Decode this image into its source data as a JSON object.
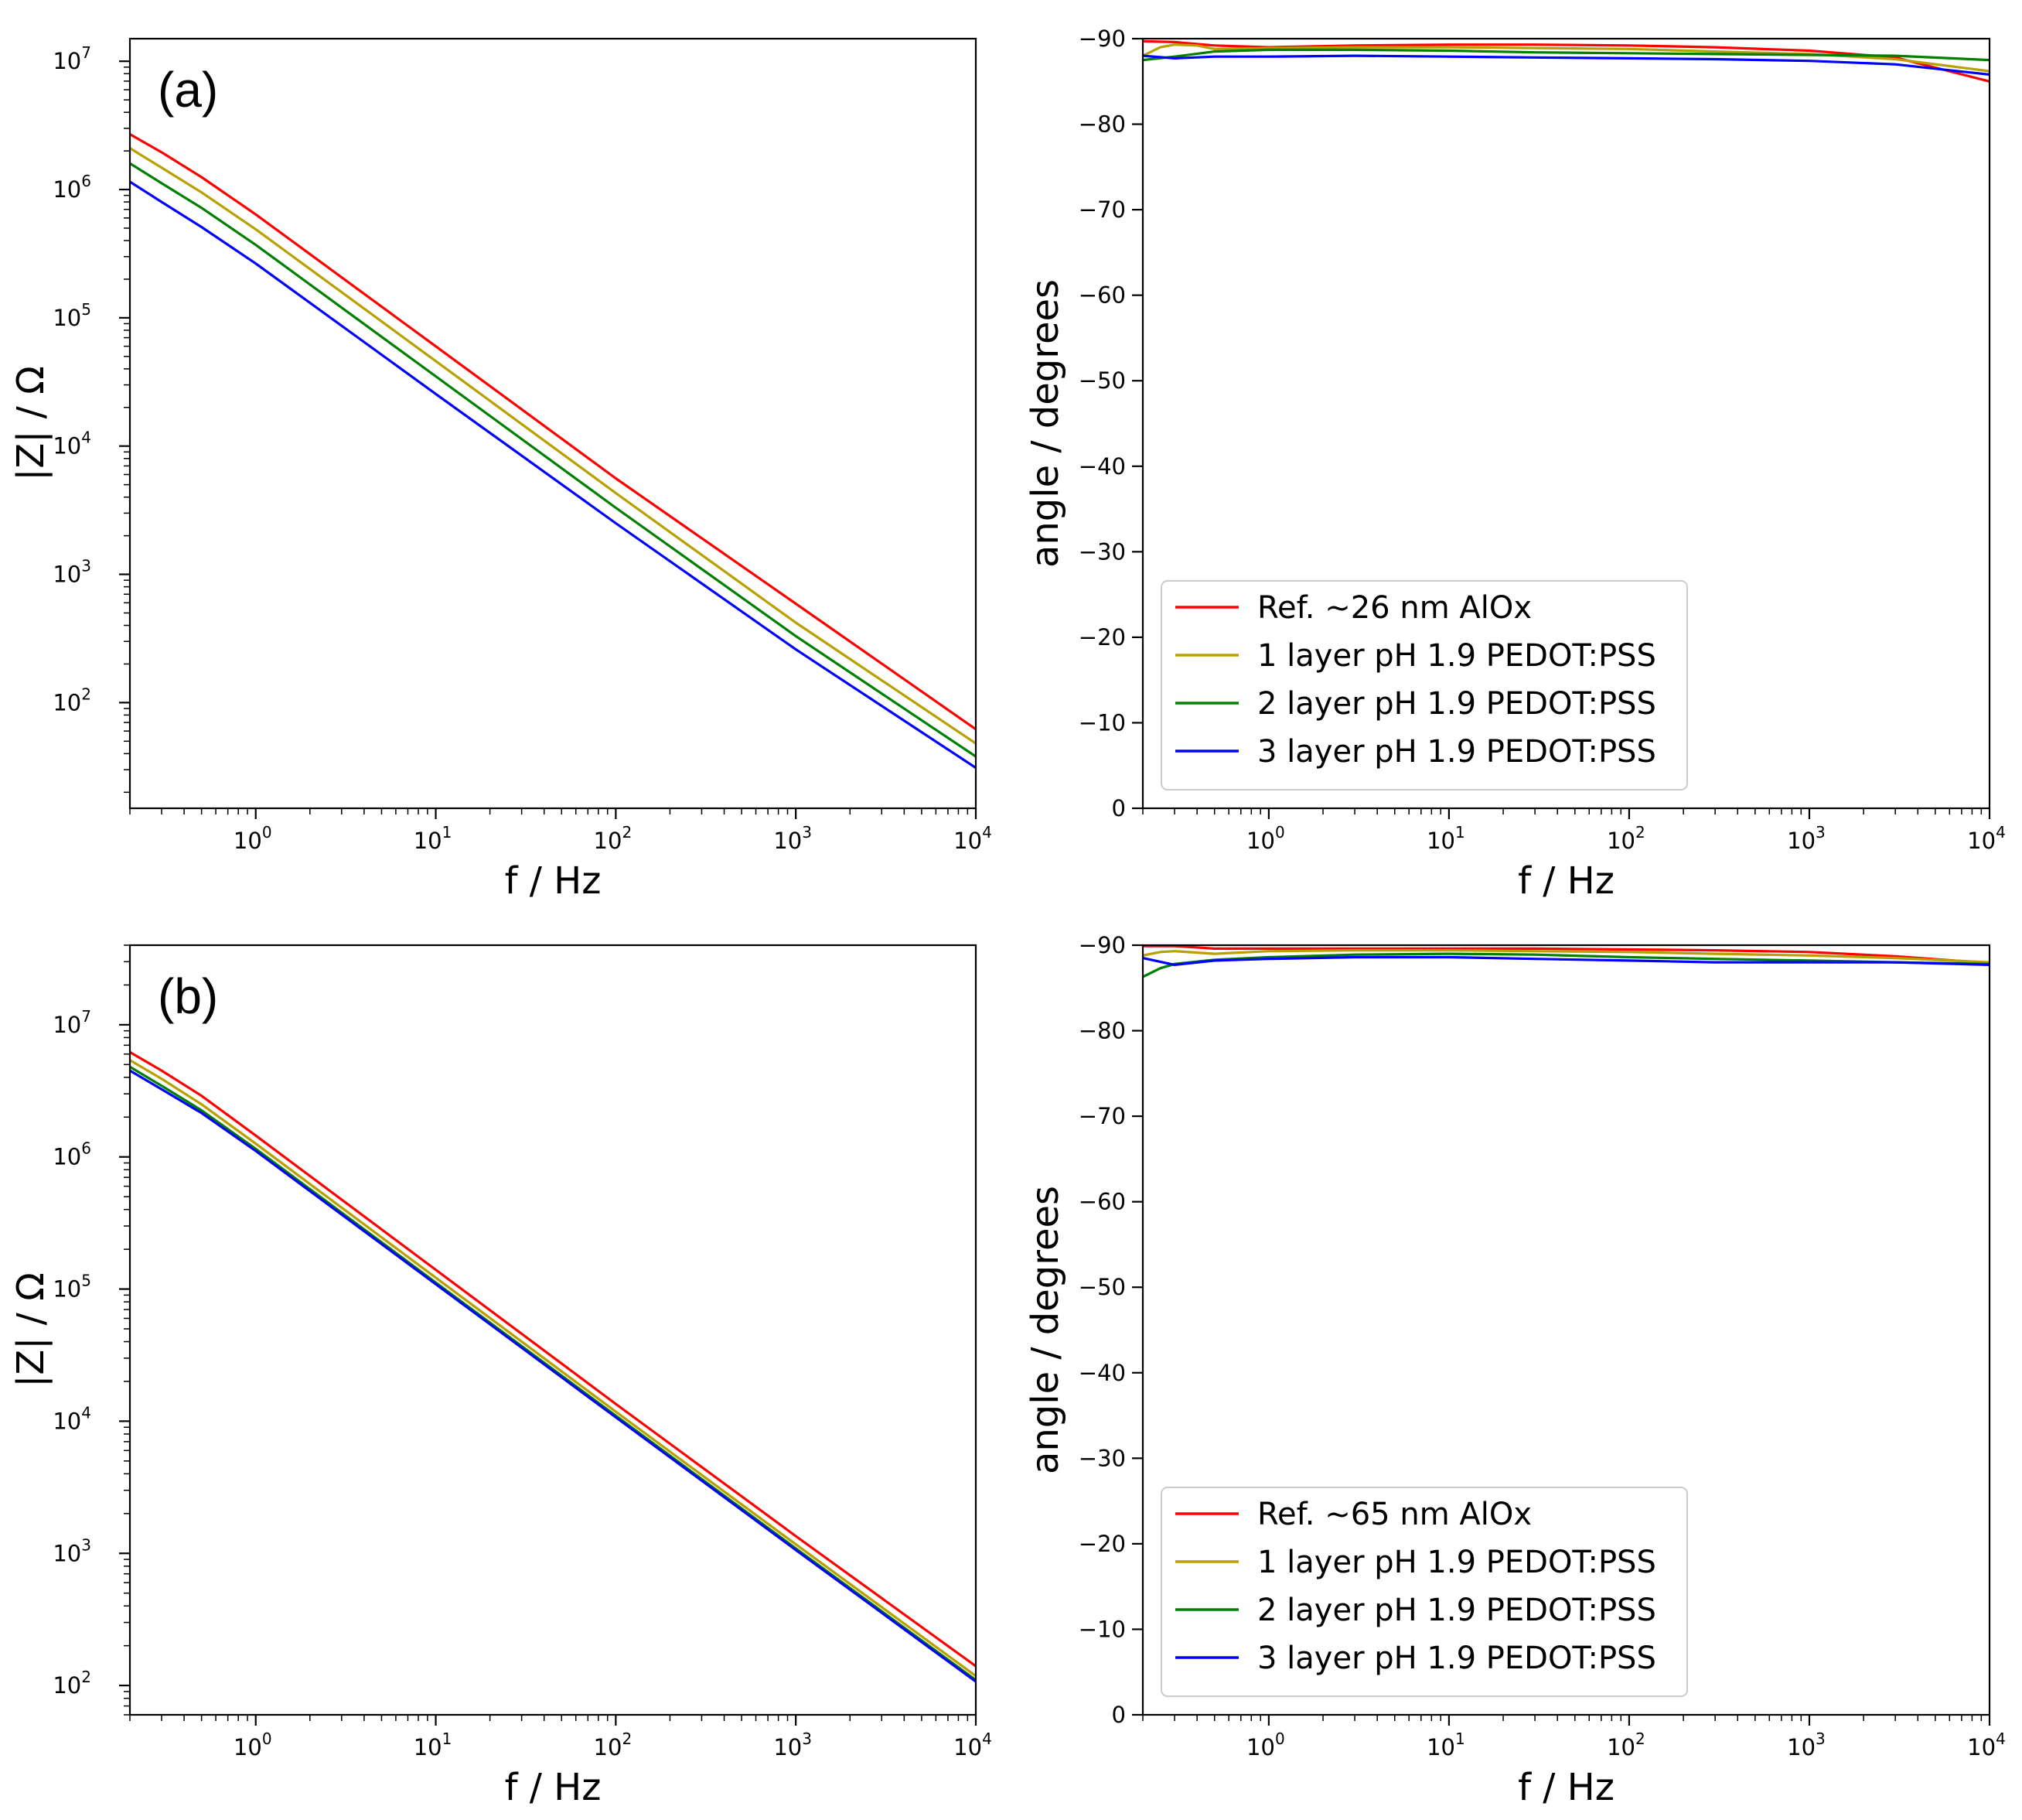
{
  "chart_data": [
    {
      "type": "line",
      "id": "a-mag",
      "panel_label": "(a)",
      "xscale": "log",
      "yscale": "log",
      "xlim": [
        0.2,
        10000
      ],
      "ylim": [
        15,
        15000000
      ],
      "xlabel": "f / Hz",
      "ylabel": "|Z| / Ω",
      "xticks": [
        {
          "base": "10",
          "exp": "0",
          "value": 1
        },
        {
          "base": "10",
          "exp": "1",
          "value": 10
        },
        {
          "base": "10",
          "exp": "2",
          "value": 100
        },
        {
          "base": "10",
          "exp": "3",
          "value": 1000
        },
        {
          "base": "10",
          "exp": "4",
          "value": 10000
        }
      ],
      "yticks": [
        {
          "base": "10",
          "exp": "2",
          "value": 100
        },
        {
          "base": "10",
          "exp": "3",
          "value": 1000
        },
        {
          "base": "10",
          "exp": "4",
          "value": 10000
        },
        {
          "base": "10",
          "exp": "5",
          "value": 100000
        },
        {
          "base": "10",
          "exp": "6",
          "value": 1000000
        },
        {
          "base": "10",
          "exp": "7",
          "value": 10000000
        }
      ],
      "series": [
        {
          "name": "Ref. ~26 nm AlOx",
          "color": "#ff0000",
          "x": [
            0.2,
            0.3,
            0.5,
            1,
            10,
            100,
            1000,
            10000
          ],
          "y": [
            2700000,
            1950000,
            1250000,
            640000,
            60000,
            5600.0,
            590,
            62
          ]
        },
        {
          "name": "1 layer pH 1.9 PEDOT:PSS",
          "color": "#b8a000",
          "x": [
            0.2,
            0.3,
            0.5,
            1,
            10,
            100,
            1000,
            10000
          ],
          "y": [
            2100000,
            1480000,
            950000,
            490000,
            46000,
            4300,
            420,
            48
          ]
        },
        {
          "name": "2 layer pH 1.9 PEDOT:PSS",
          "color": "#008000",
          "x": [
            0.2,
            0.3,
            0.5,
            1,
            10,
            100,
            1000,
            10000
          ],
          "y": [
            1600000,
            1120000,
            720000,
            370000,
            35000,
            3300,
            330,
            38
          ]
        },
        {
          "name": "3 layer pH 1.9 PEDOT:PSS",
          "color": "#0000ff",
          "x": [
            0.2,
            0.3,
            0.5,
            1,
            10,
            100,
            1000,
            10000
          ],
          "y": [
            1150000,
            800000,
            510000,
            265000,
            25500,
            2500,
            260,
            31
          ]
        }
      ]
    },
    {
      "type": "line",
      "id": "a-phase",
      "xscale": "log",
      "yscale": "linear",
      "xlim": [
        0.2,
        10000
      ],
      "ylim": [
        0,
        -90
      ],
      "xlabel": "f / Hz",
      "ylabel": "angle / degrees",
      "xticks": [
        {
          "base": "10",
          "exp": "0",
          "value": 1
        },
        {
          "base": "10",
          "exp": "1",
          "value": 10
        },
        {
          "base": "10",
          "exp": "2",
          "value": 100
        },
        {
          "base": "10",
          "exp": "3",
          "value": 1000
        },
        {
          "base": "10",
          "exp": "4",
          "value": 10000
        }
      ],
      "yticks": [
        {
          "label": "0",
          "value": 0
        },
        {
          "label": "−10",
          "value": -10
        },
        {
          "label": "−20",
          "value": -20
        },
        {
          "label": "−30",
          "value": -30
        },
        {
          "label": "−40",
          "value": -40
        },
        {
          "label": "−50",
          "value": -50
        },
        {
          "label": "−60",
          "value": -60
        },
        {
          "label": "−70",
          "value": -70
        },
        {
          "label": "−80",
          "value": -80
        },
        {
          "label": "−90",
          "value": -90
        }
      ],
      "legend": {
        "location": "lower-left"
      },
      "series": [
        {
          "name": "Ref. ~26 nm AlOx",
          "color": "#ff0000",
          "x": [
            0.2,
            0.3,
            0.5,
            1,
            3,
            10,
            30,
            100,
            300,
            1000,
            3000,
            10000
          ],
          "y": [
            -89.7,
            -89.6,
            -89.2,
            -89.0,
            -89.2,
            -89.3,
            -89.3,
            -89.2,
            -89.0,
            -88.6,
            -87.8,
            -85.0
          ]
        },
        {
          "name": "1 layer pH 1.9 PEDOT:PSS",
          "color": "#b8a000",
          "x": [
            0.2,
            0.25,
            0.3,
            0.4,
            0.5,
            1,
            3,
            10,
            30,
            100,
            300,
            1000,
            3000,
            10000
          ],
          "y": [
            -88.0,
            -89.0,
            -89.3,
            -89.2,
            -88.8,
            -88.9,
            -89.0,
            -89.0,
            -88.9,
            -88.8,
            -88.5,
            -88.2,
            -87.6,
            -86.2
          ]
        },
        {
          "name": "2 layer pH 1.9 PEDOT:PSS",
          "color": "#008000",
          "x": [
            0.2,
            0.3,
            0.5,
            1,
            3,
            10,
            30,
            100,
            300,
            1000,
            3000,
            10000
          ],
          "y": [
            -87.5,
            -87.9,
            -88.5,
            -88.7,
            -88.7,
            -88.6,
            -88.4,
            -88.3,
            -88.2,
            -88.1,
            -88.0,
            -87.5
          ]
        },
        {
          "name": "3 layer pH 1.9 PEDOT:PSS",
          "color": "#0000ff",
          "x": [
            0.2,
            0.3,
            0.5,
            1,
            3,
            10,
            30,
            100,
            300,
            1000,
            3000,
            10000
          ],
          "y": [
            -88.0,
            -87.7,
            -87.9,
            -87.9,
            -88.0,
            -87.9,
            -87.8,
            -87.7,
            -87.6,
            -87.4,
            -87.0,
            -85.8
          ]
        }
      ]
    },
    {
      "type": "line",
      "id": "b-mag",
      "panel_label": "(b)",
      "xscale": "log",
      "yscale": "log",
      "xlim": [
        0.2,
        10000
      ],
      "ylim": [
        60,
        40000000
      ],
      "xlabel": "f / Hz",
      "ylabel": "|Z| / Ω",
      "xticks": [
        {
          "base": "10",
          "exp": "0",
          "value": 1
        },
        {
          "base": "10",
          "exp": "1",
          "value": 10
        },
        {
          "base": "10",
          "exp": "2",
          "value": 100
        },
        {
          "base": "10",
          "exp": "3",
          "value": 1000
        },
        {
          "base": "10",
          "exp": "4",
          "value": 10000
        }
      ],
      "yticks": [
        {
          "base": "10",
          "exp": "2",
          "value": 100
        },
        {
          "base": "10",
          "exp": "3",
          "value": 1000
        },
        {
          "base": "10",
          "exp": "4",
          "value": 10000
        },
        {
          "base": "10",
          "exp": "5",
          "value": 100000
        },
        {
          "base": "10",
          "exp": "6",
          "value": 1000000
        },
        {
          "base": "10",
          "exp": "7",
          "value": 10000000
        }
      ],
      "series": [
        {
          "name": "Ref. ~65 nm AlOx",
          "color": "#ff0000",
          "x": [
            0.2,
            0.3,
            0.5,
            1,
            10,
            100,
            1000,
            10000
          ],
          "y": [
            6200000,
            4500000,
            2900000,
            1450000,
            140000,
            13500,
            1350,
            140
          ]
        },
        {
          "name": "1 layer pH 1.9 PEDOT:PSS",
          "color": "#b8a000",
          "x": [
            0.2,
            0.3,
            0.5,
            1,
            10,
            100,
            1000,
            10000
          ],
          "y": [
            5400000,
            3900000,
            2500000,
            1260000,
            122000,
            11800,
            1170,
            118
          ]
        },
        {
          "name": "2 layer pH 1.9 PEDOT:PSS",
          "color": "#008000",
          "x": [
            0.2,
            0.3,
            0.5,
            1,
            10,
            100,
            1000,
            10000
          ],
          "y": [
            4800000,
            3450000,
            2250000,
            1150000,
            112000,
            11000,
            1090,
            110
          ]
        },
        {
          "name": "3 layer pH 1.9 PEDOT:PSS",
          "color": "#0000ff",
          "x": [
            0.2,
            0.3,
            0.5,
            1,
            10,
            100,
            1000,
            10000
          ],
          "y": [
            4500000,
            3250000,
            2150000,
            1110000,
            109000,
            10700,
            1060,
            107
          ]
        }
      ]
    },
    {
      "type": "line",
      "id": "b-phase",
      "xscale": "log",
      "yscale": "linear",
      "xlim": [
        0.2,
        10000
      ],
      "ylim": [
        0,
        -90
      ],
      "xlabel": "f / Hz",
      "ylabel": "angle / degrees",
      "xticks": [
        {
          "base": "10",
          "exp": "0",
          "value": 1
        },
        {
          "base": "10",
          "exp": "1",
          "value": 10
        },
        {
          "base": "10",
          "exp": "2",
          "value": 100
        },
        {
          "base": "10",
          "exp": "3",
          "value": 1000
        },
        {
          "base": "10",
          "exp": "4",
          "value": 10000
        }
      ],
      "yticks": [
        {
          "label": "0",
          "value": 0
        },
        {
          "label": "−10",
          "value": -10
        },
        {
          "label": "−20",
          "value": -20
        },
        {
          "label": "−30",
          "value": -30
        },
        {
          "label": "−40",
          "value": -40
        },
        {
          "label": "−50",
          "value": -50
        },
        {
          "label": "−60",
          "value": -60
        },
        {
          "label": "−70",
          "value": -70
        },
        {
          "label": "−80",
          "value": -80
        },
        {
          "label": "−90",
          "value": -90
        }
      ],
      "legend": {
        "location": "lower-left"
      },
      "series": [
        {
          "name": "Ref. ~65 nm AlOx",
          "color": "#ff0000",
          "x": [
            0.2,
            0.3,
            0.5,
            1,
            3,
            10,
            30,
            100,
            300,
            1000,
            3000,
            10000
          ],
          "y": [
            -89.9,
            -89.9,
            -89.6,
            -89.6,
            -89.6,
            -89.6,
            -89.6,
            -89.5,
            -89.4,
            -89.2,
            -88.7,
            -87.9
          ]
        },
        {
          "name": "1 layer pH 1.9 PEDOT:PSS",
          "color": "#b8a000",
          "x": [
            0.2,
            0.25,
            0.3,
            0.5,
            1,
            3,
            10,
            30,
            100,
            300,
            1000,
            3000,
            10000
          ],
          "y": [
            -88.8,
            -89.2,
            -89.3,
            -89.0,
            -89.3,
            -89.4,
            -89.4,
            -89.3,
            -89.2,
            -89.0,
            -88.8,
            -88.5,
            -88.0
          ]
        },
        {
          "name": "2 layer pH 1.9 PEDOT:PSS",
          "color": "#008000",
          "x": [
            0.2,
            0.25,
            0.3,
            0.5,
            1,
            3,
            10,
            30,
            100,
            300,
            1000,
            3000,
            10000
          ],
          "y": [
            -86.3,
            -87.3,
            -87.8,
            -88.3,
            -88.6,
            -88.9,
            -89.0,
            -88.9,
            -88.6,
            -88.4,
            -88.2,
            -88.0,
            -87.8
          ]
        },
        {
          "name": "3 layer pH 1.9 PEDOT:PSS",
          "color": "#0000ff",
          "x": [
            0.2,
            0.3,
            0.5,
            1,
            3,
            10,
            30,
            100,
            300,
            1000,
            3000,
            10000
          ],
          "y": [
            -88.5,
            -87.7,
            -88.2,
            -88.4,
            -88.6,
            -88.6,
            -88.4,
            -88.2,
            -88.0,
            -88.0,
            -88.0,
            -87.7
          ]
        }
      ]
    }
  ]
}
